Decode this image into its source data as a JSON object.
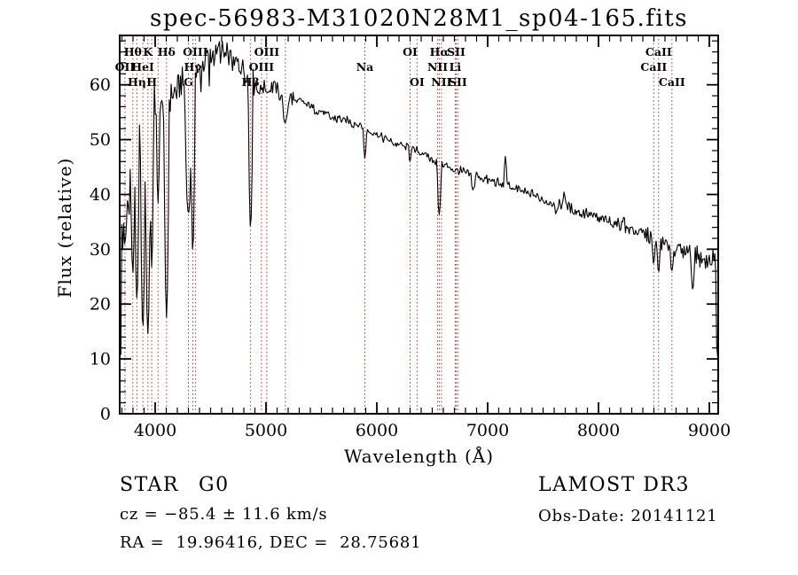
{
  "chart_data": {
    "type": "line",
    "title": "spec-56983-M31020N28M1_sp04-165.fits",
    "xlabel": "Wavelength (Å)",
    "ylabel": "Flux (relative)",
    "xlim": [
      3680,
      9080
    ],
    "ylim": [
      0,
      69
    ],
    "x_ticks": [
      4000,
      5000,
      6000,
      7000,
      8000,
      9000
    ],
    "y_ticks": [
      0,
      10,
      20,
      30,
      40,
      50,
      60
    ],
    "x_minor_step": 100,
    "y_minor_step": 2,
    "grid": false,
    "line_color": "#000000",
    "marker_color": "#aa3333",
    "line_markers": [
      {
        "label": "OII",
        "wavelength": 3727,
        "row": 2
      },
      {
        "label": "Hθ",
        "wavelength": 3798,
        "row": 1
      },
      {
        "label": "Hη",
        "wavelength": 3835,
        "row": 3
      },
      {
        "label": "HeI",
        "wavelength": 3889,
        "row": 2
      },
      {
        "label": "K",
        "wavelength": 3934,
        "row": 1
      },
      {
        "label": "H",
        "wavelength": 3969,
        "row": 3
      },
      {
        "label": "",
        "wavelength": 4026,
        "row": 0
      },
      {
        "label": "Hδ",
        "wavelength": 4102,
        "row": 1
      },
      {
        "label": "G",
        "wavelength": 4300,
        "row": 3
      },
      {
        "label": "Hγ",
        "wavelength": 4340,
        "row": 2
      },
      {
        "label": "OIII",
        "wavelength": 4363,
        "row": 1
      },
      {
        "label": "Hβ",
        "wavelength": 4861,
        "row": 3
      },
      {
        "label": "OIII",
        "wavelength": 4959,
        "row": 2
      },
      {
        "label": "OIII",
        "wavelength": 5007,
        "row": 1
      },
      {
        "label": "",
        "wavelength": 5175,
        "row": 0
      },
      {
        "label": "Na",
        "wavelength": 5892,
        "row": 2
      },
      {
        "label": "OI",
        "wavelength": 6300,
        "row": 1
      },
      {
        "label": "OI",
        "wavelength": 6363,
        "row": 3
      },
      {
        "label": "NII",
        "wavelength": 6548,
        "row": 2
      },
      {
        "label": "Hα",
        "wavelength": 6563,
        "row": 1
      },
      {
        "label": "NII",
        "wavelength": 6583,
        "row": 3
      },
      {
        "label": "Li",
        "wavelength": 6707,
        "row": 2
      },
      {
        "label": "SII",
        "wavelength": 6716,
        "row": 1
      },
      {
        "label": "SII",
        "wavelength": 6731,
        "row": 3
      },
      {
        "label": "CaII",
        "wavelength": 8498,
        "row": 2
      },
      {
        "label": "CaII",
        "wavelength": 8542,
        "row": 1
      },
      {
        "label": "CaII",
        "wavelength": 8662,
        "row": 3
      }
    ],
    "spectrum_envelope": [
      [
        3682,
        40
      ],
      [
        3686,
        9
      ],
      [
        3691,
        45
      ],
      [
        3698,
        36
      ],
      [
        3706,
        27
      ],
      [
        3714,
        44
      ],
      [
        3722,
        39
      ],
      [
        3730,
        46
      ],
      [
        3738,
        34
      ],
      [
        3746,
        46
      ],
      [
        3754,
        31
      ],
      [
        3762,
        44
      ],
      [
        3770,
        40
      ],
      [
        3782,
        48
      ],
      [
        3795,
        44
      ],
      [
        3808,
        48
      ],
      [
        3820,
        50
      ],
      [
        3833,
        47
      ],
      [
        3846,
        52
      ],
      [
        3859,
        50
      ],
      [
        3872,
        53
      ],
      [
        3885,
        50
      ],
      [
        3898,
        54
      ],
      [
        3911,
        55
      ],
      [
        3924,
        52
      ],
      [
        3937,
        51
      ],
      [
        3950,
        55
      ],
      [
        3963,
        54
      ],
      [
        3976,
        56
      ],
      [
        4000,
        55
      ],
      [
        4030,
        57
      ],
      [
        4060,
        55
      ],
      [
        4090,
        57
      ],
      [
        4120,
        56
      ],
      [
        4150,
        58
      ],
      [
        4180,
        59
      ],
      [
        4210,
        60
      ],
      [
        4240,
        61
      ],
      [
        4270,
        60
      ],
      [
        4300,
        60
      ],
      [
        4330,
        61
      ],
      [
        4360,
        62
      ],
      [
        4400,
        63
      ],
      [
        4440,
        64
      ],
      [
        4480,
        65
      ],
      [
        4520,
        65
      ],
      [
        4560,
        66
      ],
      [
        4600,
        66
      ],
      [
        4640,
        65
      ],
      [
        4680,
        65
      ],
      [
        4720,
        64
      ],
      [
        4760,
        64
      ],
      [
        4800,
        63
      ],
      [
        4830,
        62
      ],
      [
        4860,
        61
      ],
      [
        4900,
        60
      ],
      [
        4940,
        59
      ],
      [
        4980,
        60
      ],
      [
        5020,
        59
      ],
      [
        5060,
        60
      ],
      [
        5100,
        59
      ],
      [
        5140,
        58
      ],
      [
        5180,
        57
      ],
      [
        5220,
        58
      ],
      [
        5260,
        57
      ],
      [
        5300,
        57
      ],
      [
        5400,
        56
      ],
      [
        5500,
        55
      ],
      [
        5600,
        54
      ],
      [
        5700,
        53.5
      ],
      [
        5800,
        53
      ],
      [
        5900,
        52
      ],
      [
        6000,
        51
      ],
      [
        6100,
        50
      ],
      [
        6200,
        49
      ],
      [
        6300,
        48.5
      ],
      [
        6400,
        47.5
      ],
      [
        6500,
        46.5
      ],
      [
        6600,
        45.5
      ],
      [
        6700,
        44.5
      ],
      [
        6800,
        44
      ],
      [
        6900,
        43.5
      ],
      [
        7000,
        42.5
      ],
      [
        7100,
        42
      ],
      [
        7200,
        41.5
      ],
      [
        7300,
        40.5
      ],
      [
        7400,
        40
      ],
      [
        7500,
        39
      ],
      [
        7600,
        38.5
      ],
      [
        7700,
        38
      ],
      [
        7800,
        37
      ],
      [
        7900,
        36.5
      ],
      [
        8000,
        35.5
      ],
      [
        8100,
        35
      ],
      [
        8200,
        34.5
      ],
      [
        8300,
        33.5
      ],
      [
        8400,
        33
      ],
      [
        8500,
        32
      ],
      [
        8600,
        31
      ],
      [
        8700,
        30
      ],
      [
        8800,
        29.5
      ],
      [
        8900,
        28.5
      ],
      [
        9000,
        27.5
      ],
      [
        9040,
        28.5
      ],
      [
        9080,
        26
      ]
    ],
    "absorption_lines": [
      [
        3687,
        8,
        12
      ],
      [
        3727,
        31,
        20
      ],
      [
        3798,
        26,
        22
      ],
      [
        3835,
        21,
        22
      ],
      [
        3889,
        16,
        24
      ],
      [
        3934,
        15,
        26
      ],
      [
        3969,
        27,
        18
      ],
      [
        4026,
        38,
        16
      ],
      [
        4102,
        18,
        24
      ],
      [
        4300,
        36,
        34
      ],
      [
        4340,
        30,
        22
      ],
      [
        4861,
        34,
        22
      ],
      [
        5175,
        53,
        28
      ],
      [
        5892,
        47,
        18
      ],
      [
        6300,
        46,
        14
      ],
      [
        6563,
        36.5,
        20
      ],
      [
        6870,
        41,
        22
      ],
      [
        7620,
        36.5,
        22
      ],
      [
        8498,
        27,
        16
      ],
      [
        8542,
        25.5,
        16
      ],
      [
        8662,
        26,
        16
      ],
      [
        8850,
        23,
        18
      ],
      [
        9072,
        10,
        14
      ]
    ],
    "emission_spikes": [
      [
        7160,
        47,
        14
      ],
      [
        7690,
        40.5,
        12
      ],
      [
        8230,
        36,
        12
      ]
    ],
    "noise_profile": [
      [
        3680,
        4.8
      ],
      [
        3770,
        4.2
      ],
      [
        3995,
        2.4
      ],
      [
        4390,
        2.2
      ],
      [
        4900,
        1.5
      ],
      [
        5250,
        0.8
      ],
      [
        6550,
        0.8
      ],
      [
        7500,
        1.0
      ],
      [
        8380,
        1.3
      ],
      [
        8780,
        1.6
      ]
    ]
  },
  "results": {
    "object_type": "STAR",
    "subclass": "G0",
    "survey": "LAMOST DR3",
    "cz_line": "cz = −85.4 ± 11.6 km/s",
    "obs_date_line": "Obs-Date: 20141121",
    "radec_line": "RA =  19.96416, DEC =  28.75681"
  }
}
